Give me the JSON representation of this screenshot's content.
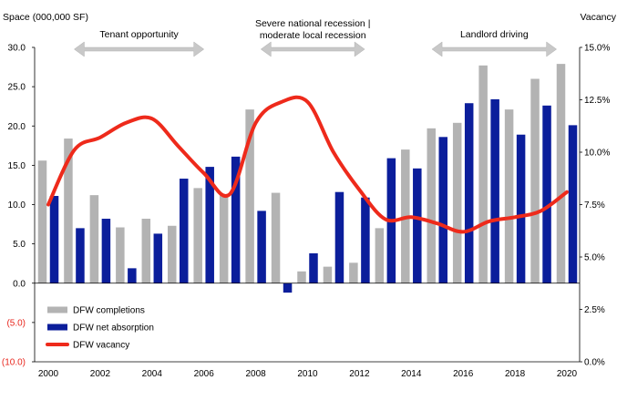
{
  "chart_data": {
    "type": "bar+line",
    "title": "",
    "ylabel_left": "Space (000,000 SF)",
    "ylabel_right": "Vacancy",
    "x": [
      2000,
      2001,
      2002,
      2003,
      2004,
      2005,
      2006,
      2007,
      2008,
      2009,
      2010,
      2011,
      2012,
      2013,
      2014,
      2015,
      2016,
      2017,
      2018,
      2019,
      2020
    ],
    "x_tick_labels": [
      "2000",
      "2002",
      "2004",
      "2006",
      "2008",
      "2010",
      "2012",
      "2014",
      "2016",
      "2018",
      "2020"
    ],
    "left_axis": {
      "ylim": [
        -10,
        30
      ],
      "ticks": [
        30,
        25,
        20,
        15,
        10,
        5,
        0,
        -5,
        -10
      ],
      "tick_labels": [
        "30.0",
        "25.0",
        "20.0",
        "15.0",
        "10.0",
        "5.0",
        "0.0",
        "(5.0)",
        "(10.0)"
      ],
      "negative_color": "#e8261d"
    },
    "right_axis": {
      "ylim": [
        0,
        15
      ],
      "ticks": [
        15,
        12.5,
        10,
        7.5,
        5,
        2.5,
        0
      ],
      "tick_labels": [
        "15.0%",
        "12.5%",
        "10.0%",
        "7.5%",
        "5.0%",
        "2.5%",
        "0.0%"
      ]
    },
    "series": [
      {
        "name": "DFW completions",
        "kind": "bar",
        "color": "#b3b3b3",
        "values": [
          15.6,
          18.4,
          11.2,
          7.1,
          8.2,
          7.3,
          12.1,
          11.2,
          22.1,
          11.5,
          1.5,
          2.1,
          2.6,
          7.0,
          17.0,
          19.7,
          20.4,
          27.7,
          22.1,
          26.0,
          27.9
        ]
      },
      {
        "name": "DFW net absorption",
        "kind": "bar",
        "color": "#0b1e9b",
        "values": [
          11.1,
          7.0,
          8.2,
          1.9,
          6.3,
          13.3,
          14.8,
          16.1,
          9.2,
          -1.2,
          3.8,
          11.6,
          10.9,
          15.9,
          14.6,
          18.6,
          22.9,
          23.4,
          18.9,
          22.6,
          20.1
        ]
      },
      {
        "name": "DFW vacancy",
        "kind": "line",
        "color": "#ee2a1b",
        "values": [
          7.5,
          10.1,
          10.7,
          11.4,
          11.6,
          10.3,
          9.0,
          8.0,
          11.4,
          12.4,
          12.4,
          10.0,
          8.2,
          6.8,
          6.9,
          6.6,
          6.2,
          6.7,
          6.9,
          7.2,
          8.1
        ]
      }
    ],
    "annotations": [
      {
        "text_lines": [
          "Tenant opportunity"
        ],
        "from": 2001,
        "to": 2006
      },
      {
        "text_lines": [
          "Severe national recession |",
          "moderate local recession"
        ],
        "from": 2008.2,
        "to": 2012.2
      },
      {
        "text_lines": [
          "Landlord driving"
        ],
        "from": 2014.8,
        "to": 2019.6
      }
    ],
    "legend_position": "bottom-left",
    "grid": false
  }
}
